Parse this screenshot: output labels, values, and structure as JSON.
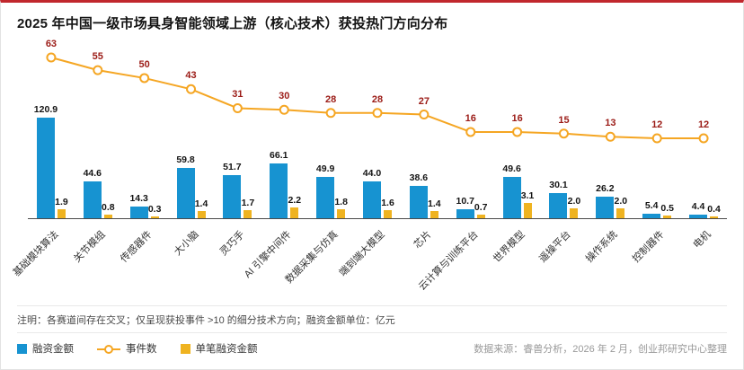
{
  "title": "2025 年中国一级市场具身智能领域上游（核心技术）获投热门方向分布",
  "note": "注明：各赛道间存在交叉；仅呈现获投事件 >10 的细分技术方向；融资金额单位：亿元",
  "source": "数据来源：睿兽分析，2026 年 2 月，创业邦研究中心整理",
  "legend": {
    "items": [
      {
        "label": "融资金额",
        "swatch": "blue-square"
      },
      {
        "label": "事件数",
        "swatch": "orange-line-circle"
      },
      {
        "label": "单笔融资金额",
        "swatch": "yellow-square"
      }
    ]
  },
  "colors": {
    "bar_primary": "#1793d1",
    "bar_secondary": "#efb320",
    "line": "#f5a623",
    "event_label": "#9b1b16",
    "accent_top": "#c1272d"
  },
  "chart_data": {
    "type": "bar",
    "subtype": "bar+line combo",
    "categories": [
      "基础模块算法",
      "关节模组",
      "传感器件",
      "大小脑",
      "灵巧手",
      "AI 引擎中间件",
      "数据采集与仿真",
      "端到端大模型",
      "芯片",
      "云计算与训练平台",
      "世界模型",
      "遥操平台",
      "操作系统",
      "控制器件",
      "电机"
    ],
    "series": [
      {
        "name": "融资金额",
        "type": "bar",
        "unit": "亿元",
        "values": [
          120.9,
          44.6,
          14.3,
          59.8,
          51.7,
          66.1,
          49.9,
          44.0,
          38.6,
          10.7,
          49.6,
          30.1,
          26.2,
          5.4,
          4.4
        ]
      },
      {
        "name": "单笔融资金额",
        "type": "bar",
        "unit": "亿元",
        "values": [
          1.9,
          0.8,
          0.3,
          1.4,
          1.7,
          2.2,
          1.8,
          1.6,
          1.4,
          0.7,
          3.1,
          2.0,
          2.0,
          0.5,
          0.4
        ]
      },
      {
        "name": "事件数",
        "type": "line",
        "values": [
          63,
          55,
          50,
          43,
          31,
          30,
          28,
          28,
          27,
          16,
          16,
          15,
          13,
          12,
          12
        ]
      }
    ],
    "title": "2025 年中国一级市场具身智能领域上游（核心技术）获投热门方向分布",
    "xlabel": "",
    "ylabel": "",
    "bar_axis_range": [
      0,
      130
    ],
    "line_axis_range": [
      0,
      70
    ],
    "grid": false,
    "legend_position": "bottom-left",
    "data_labels": true,
    "x_tick_rotation": -45
  }
}
